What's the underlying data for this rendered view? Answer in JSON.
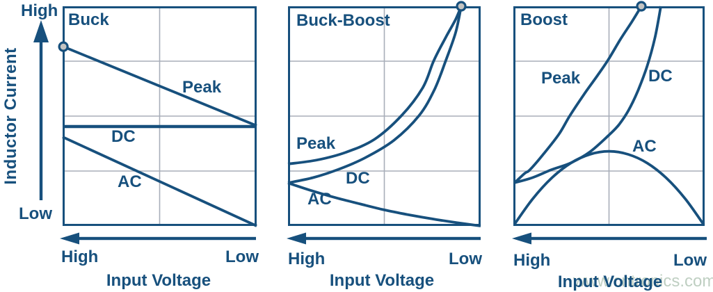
{
  "colors": {
    "navy": "#17507d",
    "grid": "#a8aeb9",
    "marker_fill": "#c4c4c2",
    "watermark_text": "#bfcfc2",
    "background": "#ffffff"
  },
  "y_axis": {
    "high": "High",
    "low": "Low",
    "label": "Inductor Current"
  },
  "x_axis": {
    "high": "High",
    "low": "Low",
    "label": "Input Voltage"
  },
  "watermark": "www.cntronics.com",
  "chart_data": [
    {
      "type": "line",
      "title": "Buck",
      "xlabel": "Input Voltage (reversed axis: High at left, Low at right)",
      "ylabel": "Inductor Current (Low to High)",
      "axes_units": "normalized 0-1 (qualitative chart, no numeric ticks)",
      "grid": {
        "vertical": [
          0.5
        ],
        "horizontal": [
          0.25,
          0.5,
          0.75
        ]
      },
      "series": [
        {
          "name": "Peak",
          "points": [
            [
              0.004,
              0.816
            ],
            [
              1,
              0.456
            ]
          ]
        },
        {
          "name": "DC",
          "points": [
            [
              0,
              0.4525
            ],
            [
              1,
              0.4525
            ]
          ],
          "width": 4.6
        },
        {
          "name": "AC",
          "points": [
            [
              0,
              0.405
            ],
            [
              1,
              0
            ]
          ]
        }
      ],
      "marker": {
        "x": 0.004,
        "y": 0.816
      }
    },
    {
      "type": "line",
      "title": "Buck-Boost",
      "xlabel": "Input Voltage (reversed axis: High at left, Low at right)",
      "ylabel": "Inductor Current (Low to High)",
      "axes_units": "normalized 0-1 (qualitative chart, no numeric ticks)",
      "grid": {
        "vertical": [
          0.5
        ],
        "horizontal": [
          0.25,
          0.5,
          0.75
        ]
      },
      "series": [
        {
          "name": "Peak",
          "points": [
            [
              0,
              0.282
            ],
            [
              0.15,
              0.3
            ],
            [
              0.3,
              0.335
            ],
            [
              0.45,
              0.395
            ],
            [
              0.59,
              0.503
            ],
            [
              0.7,
              0.63
            ],
            [
              0.757,
              0.753
            ],
            [
              0.82,
              0.86
            ],
            [
              0.87,
              0.94
            ],
            [
              0.899,
              1.0
            ]
          ]
        },
        {
          "name": "DC",
          "points": [
            [
              0,
              0.196
            ],
            [
              0.13,
              0.22
            ],
            [
              0.257,
              0.256
            ],
            [
              0.4,
              0.31
            ],
            [
              0.55,
              0.39
            ],
            [
              0.681,
              0.503
            ],
            [
              0.76,
              0.62
            ],
            [
              0.819,
              0.753
            ],
            [
              0.87,
              0.88
            ],
            [
              0.899,
              1.0
            ]
          ]
        },
        {
          "name": "AC",
          "points": [
            [
              0,
              0.196
            ],
            [
              0.125,
              0.16
            ],
            [
              0.25,
              0.128
            ],
            [
              0.375,
              0.1
            ],
            [
              0.5,
              0.073
            ],
            [
              0.625,
              0.051
            ],
            [
              0.75,
              0.032
            ],
            [
              0.875,
              0.015
            ],
            [
              1,
              0
            ]
          ]
        }
      ],
      "marker": {
        "x": 0.899,
        "y": 1.0
      }
    },
    {
      "type": "line",
      "title": "Boost",
      "xlabel": "Input Voltage (reversed axis: High at left, Low at right)",
      "ylabel": "Inductor Current (Low to High)",
      "axes_units": "normalized 0-1 (qualitative chart, no numeric ticks)",
      "grid": {
        "vertical": [
          0.5
        ],
        "horizontal": [
          0.25,
          0.5,
          0.75
        ]
      },
      "series": [
        {
          "name": "Peak",
          "points": [
            [
              0.007,
              0.197
            ],
            [
              0.06,
              0.24
            ],
            [
              0.087,
              0.256
            ],
            [
              0.16,
              0.33
            ],
            [
              0.24,
              0.42
            ],
            [
              0.296,
              0.503
            ],
            [
              0.37,
              0.6
            ],
            [
              0.44,
              0.685
            ],
            [
              0.495,
              0.755
            ],
            [
              0.56,
              0.85
            ],
            [
              0.62,
              0.93
            ],
            [
              0.669,
              1.0
            ]
          ]
        },
        {
          "name": "DC",
          "points": [
            [
              0.007,
              0.197
            ],
            [
              0.1,
              0.22
            ],
            [
              0.199,
              0.256
            ],
            [
              0.3,
              0.287
            ],
            [
              0.4,
              0.337
            ],
            [
              0.5,
              0.414
            ],
            [
              0.55,
              0.459
            ],
            [
              0.6,
              0.523
            ],
            [
              0.65,
              0.613
            ],
            [
              0.7,
              0.729
            ],
            [
              0.74,
              0.856
            ],
            [
              0.771,
              1.0
            ]
          ]
        },
        {
          "name": "AC",
          "points": [
            [
              0.007,
              0.009
            ],
            [
              0.1,
              0.122
            ],
            [
              0.2,
              0.218
            ],
            [
              0.3,
              0.286
            ],
            [
              0.4,
              0.326
            ],
            [
              0.5,
              0.34
            ],
            [
              0.6,
              0.326
            ],
            [
              0.7,
              0.286
            ],
            [
              0.8,
              0.218
            ],
            [
              0.9,
              0.122
            ],
            [
              0.996,
              0.005
            ]
          ]
        }
      ],
      "marker": {
        "x": 0.669,
        "y": 1.0
      }
    }
  ]
}
